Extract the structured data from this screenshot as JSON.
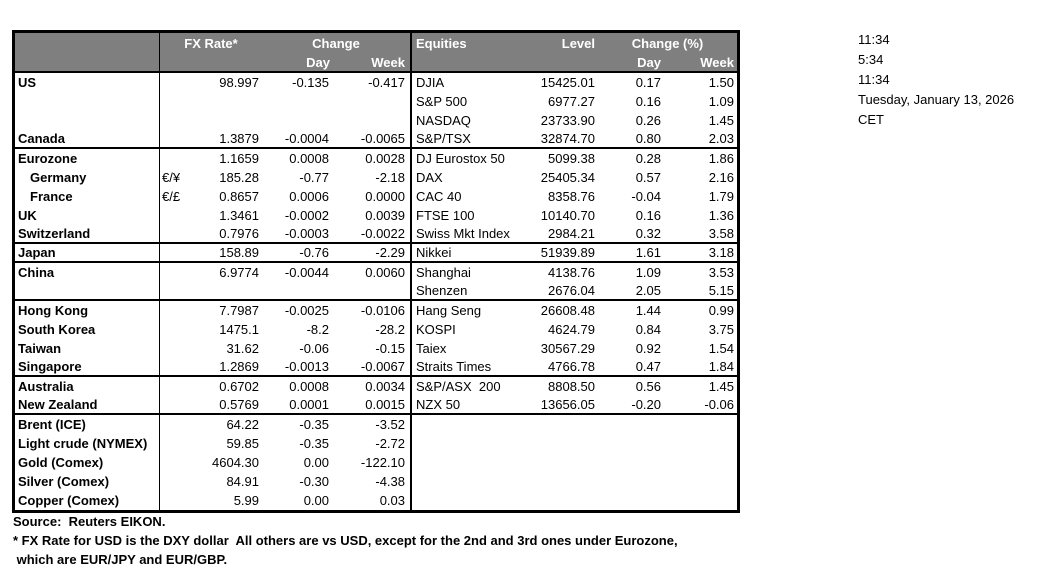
{
  "colors": {
    "header_bg": "#7f7f7f",
    "header_text": "#ffffff",
    "border": "#000000",
    "body_text": "#000000"
  },
  "clock": {
    "lines": [
      "11:34",
      "5:34",
      "11:34",
      "Tuesday, January 13, 2026",
      "CET"
    ]
  },
  "footnotes": {
    "source": "Source:  Reuters EIKON.",
    "note1": "* FX Rate for USD is the DXY dollar  All others are vs USD, except for the 2nd and 3rd ones under Eurozone,",
    "note2": " which are EUR/JPY and EUR/GBP."
  },
  "table": {
    "header": {
      "fx_rate": "FX Rate*",
      "change": "Change",
      "day": "Day",
      "week": "Week",
      "equities": "Equities",
      "level": "Level",
      "change_pct": "Change (%)",
      "day2": "Day",
      "week2": "Week"
    },
    "rows": [
      {
        "name": "US",
        "sym": "",
        "fx": "98.997",
        "chg_day": "-0.135",
        "chg_week": "-0.417",
        "equity": "DJIA",
        "level": "15425.01",
        "pct_day": "0.17",
        "pct_week": "1.50",
        "indent": false,
        "divider_after": false
      },
      {
        "name": "",
        "sym": "",
        "fx": "",
        "chg_day": "",
        "chg_week": "",
        "equity": "S&P 500",
        "level": "6977.27",
        "pct_day": "0.16",
        "pct_week": "1.09",
        "indent": false,
        "divider_after": false
      },
      {
        "name": "",
        "sym": "",
        "fx": "",
        "chg_day": "",
        "chg_week": "",
        "equity": "NASDAQ",
        "level": "23733.90",
        "pct_day": "0.26",
        "pct_week": "1.45",
        "indent": false,
        "divider_after": false
      },
      {
        "name": "Canada",
        "sym": "",
        "fx": "1.3879",
        "chg_day": "-0.0004",
        "chg_week": "-0.0065",
        "equity": "S&P/TSX",
        "level": "32874.70",
        "pct_day": "0.80",
        "pct_week": "2.03",
        "indent": false,
        "divider_after": true
      },
      {
        "name": "Eurozone",
        "sym": "",
        "fx": "1.1659",
        "chg_day": "0.0008",
        "chg_week": "0.0028",
        "equity": "DJ Eurostox 50",
        "level": "5099.38",
        "pct_day": "0.28",
        "pct_week": "1.86",
        "indent": false,
        "divider_after": false
      },
      {
        "name": "Germany",
        "sym": "€/¥",
        "fx": "185.28",
        "chg_day": "-0.77",
        "chg_week": "-2.18",
        "equity": "DAX",
        "level": "25405.34",
        "pct_day": "0.57",
        "pct_week": "2.16",
        "indent": true,
        "divider_after": false
      },
      {
        "name": "France",
        "sym": "€/£",
        "fx": "0.8657",
        "chg_day": "0.0006",
        "chg_week": "0.0000",
        "equity": "CAC 40",
        "level": "8358.76",
        "pct_day": "-0.04",
        "pct_week": "1.79",
        "indent": true,
        "divider_after": false
      },
      {
        "name": "UK",
        "sym": "",
        "fx": "1.3461",
        "chg_day": "-0.0002",
        "chg_week": "0.0039",
        "equity": "FTSE 100",
        "level": "10140.70",
        "pct_day": "0.16",
        "pct_week": "1.36",
        "indent": false,
        "divider_after": false
      },
      {
        "name": "Switzerland",
        "sym": "",
        "fx": "0.7976",
        "chg_day": "-0.0003",
        "chg_week": "-0.0022",
        "equity": "Swiss Mkt Index",
        "level": "2984.21",
        "pct_day": "0.32",
        "pct_week": "3.58",
        "indent": false,
        "divider_after": true
      },
      {
        "name": "Japan",
        "sym": "",
        "fx": "158.89",
        "chg_day": "-0.76",
        "chg_week": "-2.29",
        "equity": "Nikkei",
        "level": "51939.89",
        "pct_day": "1.61",
        "pct_week": "3.18",
        "indent": false,
        "divider_after": true
      },
      {
        "name": "China",
        "sym": "",
        "fx": "6.9774",
        "chg_day": "-0.0044",
        "chg_week": "0.0060",
        "equity": "Shanghai",
        "level": "4138.76",
        "pct_day": "1.09",
        "pct_week": "3.53",
        "indent": false,
        "divider_after": false
      },
      {
        "name": "",
        "sym": "",
        "fx": "",
        "chg_day": "",
        "chg_week": "",
        "equity": "Shenzen",
        "level": "2676.04",
        "pct_day": "2.05",
        "pct_week": "5.15",
        "indent": false,
        "divider_after": true
      },
      {
        "name": "Hong Kong",
        "sym": "",
        "fx": "7.7987",
        "chg_day": "-0.0025",
        "chg_week": "-0.0106",
        "equity": "Hang Seng",
        "level": "26608.48",
        "pct_day": "1.44",
        "pct_week": "0.99",
        "indent": false,
        "divider_after": false
      },
      {
        "name": "South Korea",
        "sym": "",
        "fx": "1475.1",
        "chg_day": "-8.2",
        "chg_week": "-28.2",
        "equity": "KOSPI",
        "level": "4624.79",
        "pct_day": "0.84",
        "pct_week": "3.75",
        "indent": false,
        "divider_after": false
      },
      {
        "name": "Taiwan",
        "sym": "",
        "fx": "31.62",
        "chg_day": "-0.06",
        "chg_week": "-0.15",
        "equity": "Taiex",
        "level": "30567.29",
        "pct_day": "0.92",
        "pct_week": "1.54",
        "indent": false,
        "divider_after": false
      },
      {
        "name": "Singapore",
        "sym": "",
        "fx": "1.2869",
        "chg_day": "-0.0013",
        "chg_week": "-0.0067",
        "equity": "Straits Times",
        "level": "4766.78",
        "pct_day": "0.47",
        "pct_week": "1.84",
        "indent": false,
        "divider_after": true
      },
      {
        "name": "Australia",
        "sym": "",
        "fx": "0.6702",
        "chg_day": "0.0008",
        "chg_week": "0.0034",
        "equity": "S&P/ASX  200",
        "level": "8808.50",
        "pct_day": "0.56",
        "pct_week": "1.45",
        "indent": false,
        "divider_after": false
      },
      {
        "name": "New Zealand",
        "sym": "",
        "fx": "0.5769",
        "chg_day": "0.0001",
        "chg_week": "0.0015",
        "equity": "NZX 50",
        "level": "13656.05",
        "pct_day": "-0.20",
        "pct_week": "-0.06",
        "indent": false,
        "divider_after": true
      },
      {
        "name": "Brent (ICE)",
        "sym": "",
        "fx": "64.22",
        "chg_day": "-0.35",
        "chg_week": "-3.52",
        "equity": "",
        "level": "",
        "pct_day": "",
        "pct_week": "",
        "indent": false,
        "divider_after": false
      },
      {
        "name": "Light crude (NYMEX)",
        "sym": "",
        "fx": "59.85",
        "chg_day": "-0.35",
        "chg_week": "-2.72",
        "equity": "",
        "level": "",
        "pct_day": "",
        "pct_week": "",
        "indent": false,
        "divider_after": false
      },
      {
        "name": "Gold (Comex)",
        "sym": "",
        "fx": "4604.30",
        "chg_day": "0.00",
        "chg_week": "-122.10",
        "equity": "",
        "level": "",
        "pct_day": "",
        "pct_week": "",
        "indent": false,
        "divider_after": false
      },
      {
        "name": "Silver (Comex)",
        "sym": "",
        "fx": "84.91",
        "chg_day": "-0.30",
        "chg_week": "-4.38",
        "equity": "",
        "level": "",
        "pct_day": "",
        "pct_week": "",
        "indent": false,
        "divider_after": false
      },
      {
        "name": "Copper (Comex)",
        "sym": "",
        "fx": "5.99",
        "chg_day": "0.00",
        "chg_week": "0.03",
        "equity": "",
        "level": "",
        "pct_day": "",
        "pct_week": "",
        "indent": false,
        "divider_after": false
      }
    ]
  }
}
